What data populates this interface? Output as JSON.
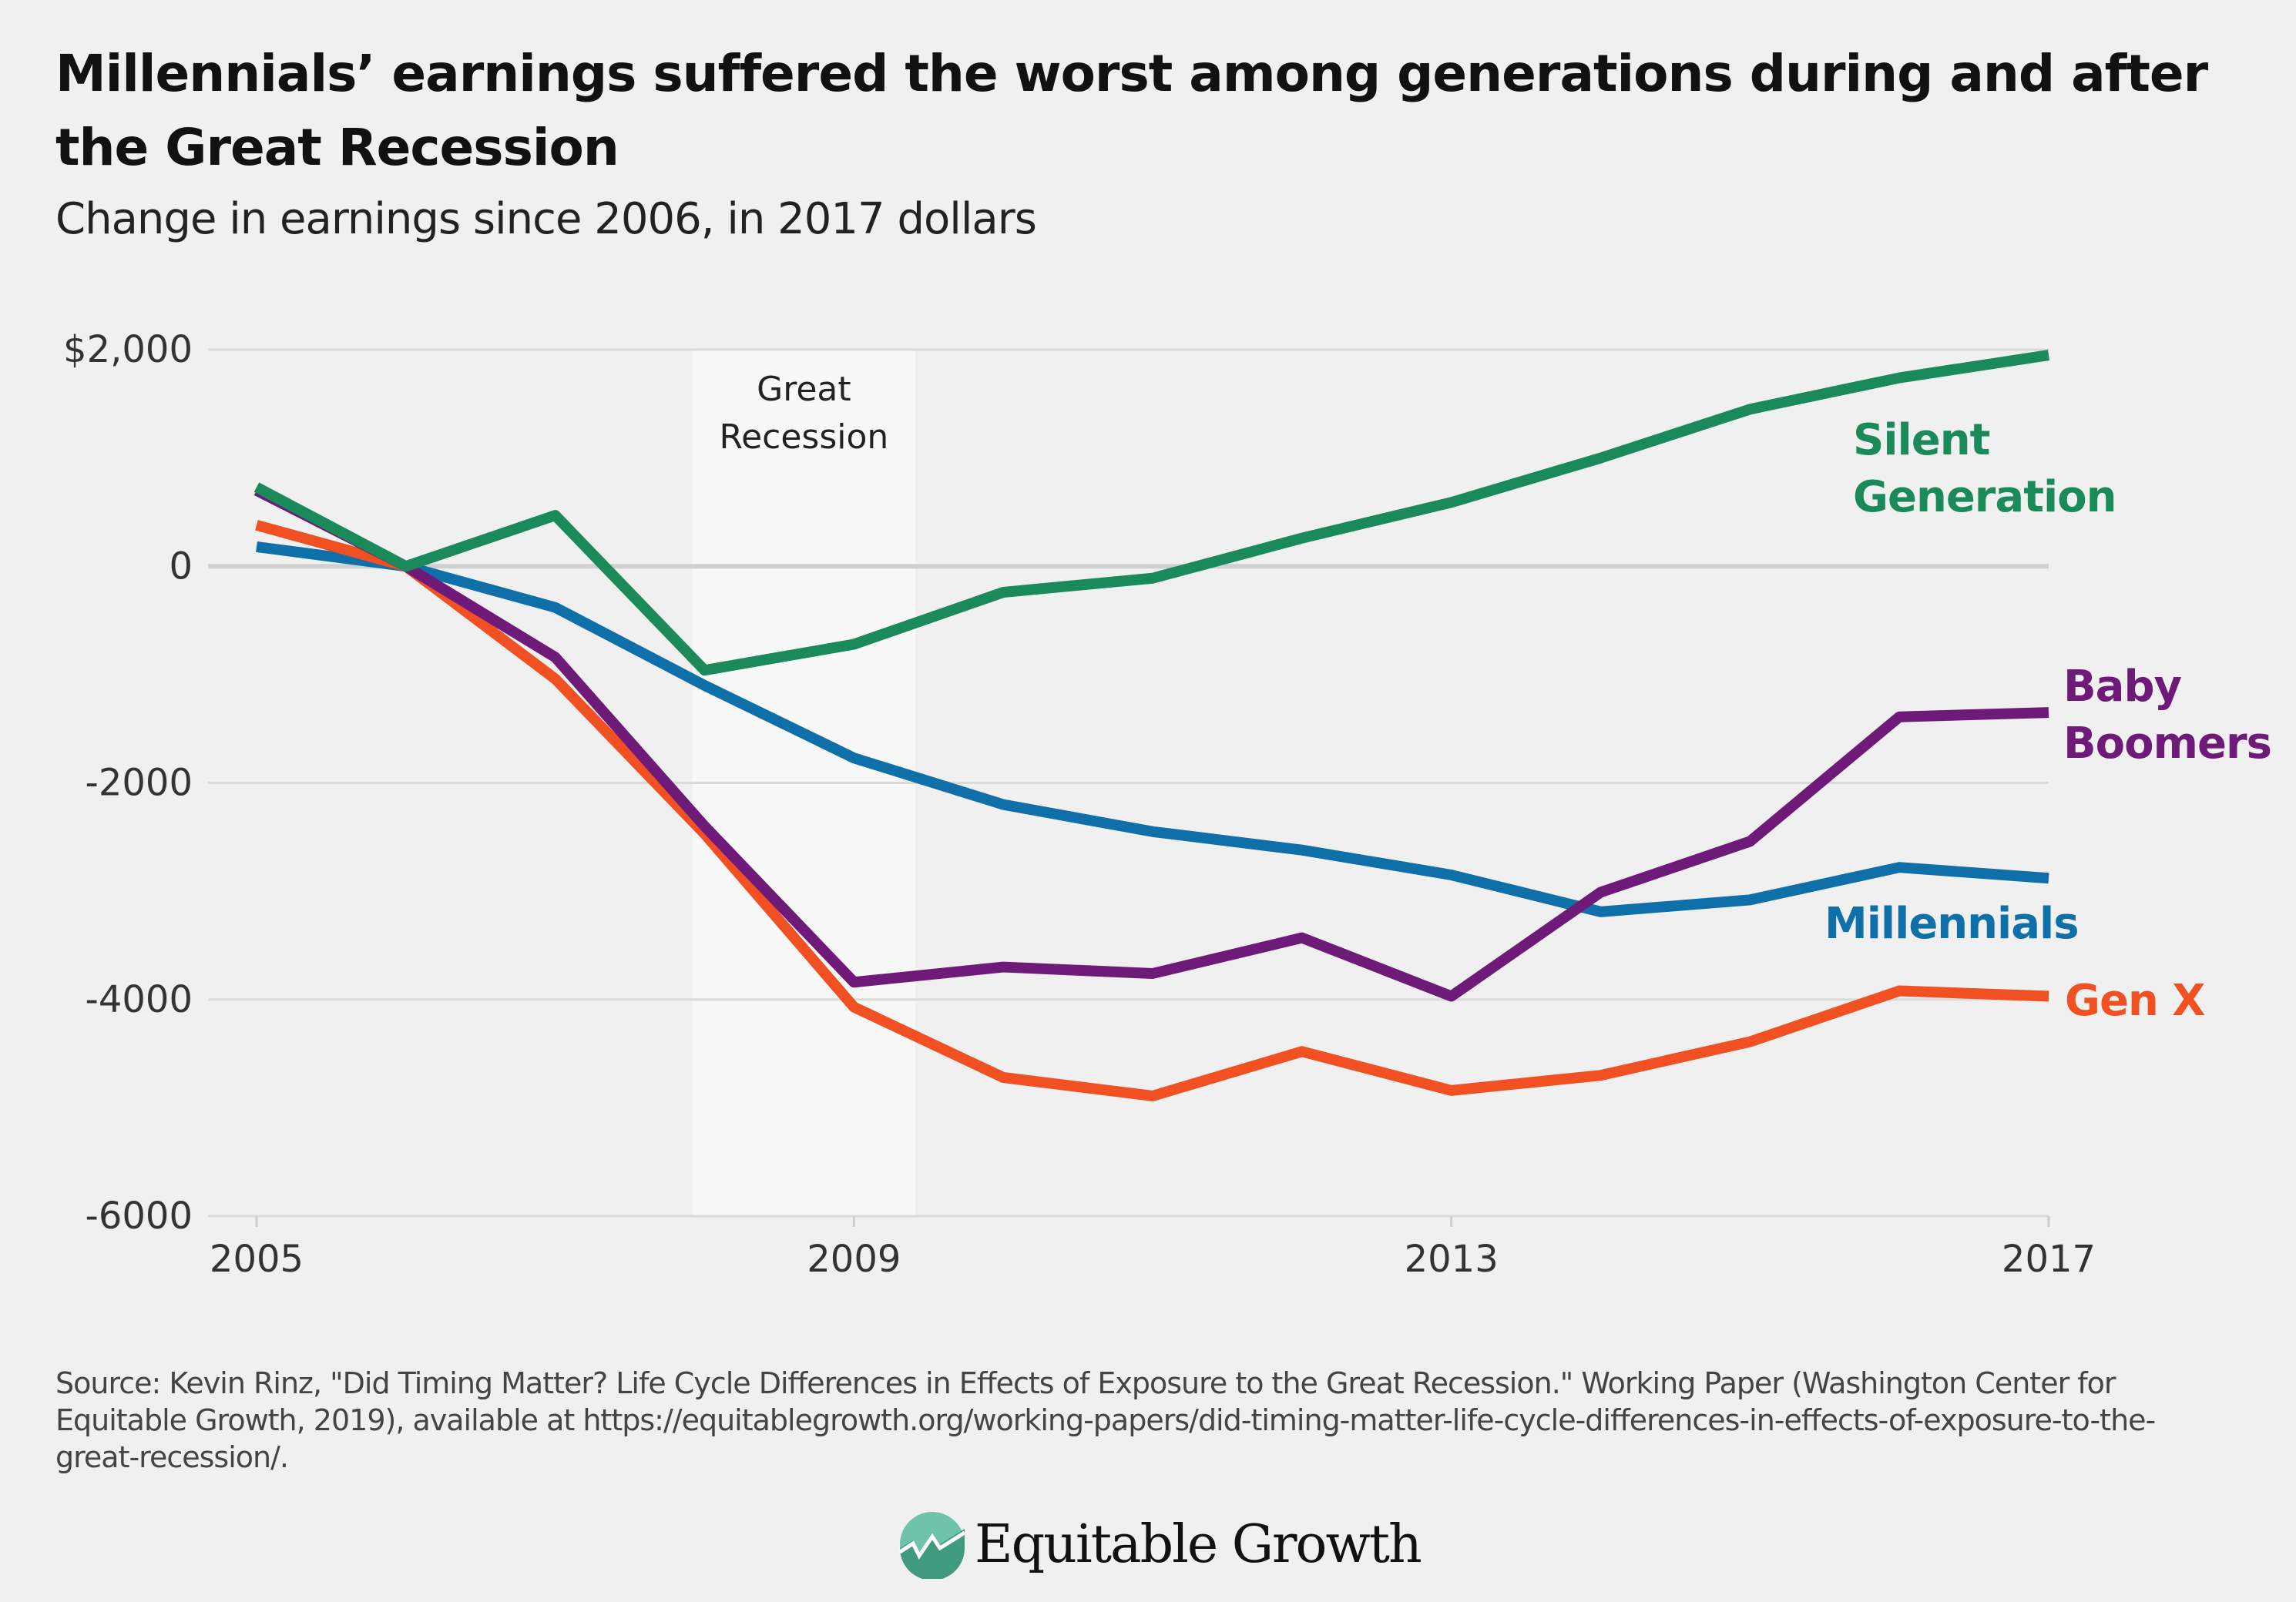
{
  "title": "Millennials’ earnings suffered the worst among generations during and after the Great Recession",
  "subtitle": "Change in earnings since 2006, in 2017 dollars",
  "source": "Source: Kevin Rinz, \"Did Timing Matter? Life Cycle Differences in Effects of Exposure to the Great Recession.\" Working Paper (Washington Center for Equitable Growth, 2019), available at https://equitablegrowth.org/working-papers/did-timing-matter-life-cycle-differences-in-effects-of-exposure-to-the-great-recession/.",
  "logo": {
    "text": "Equitable Growth",
    "icon": "growth-chart-logo-icon"
  },
  "chart_data": {
    "type": "line",
    "title": "Millennials’ earnings suffered the worst among generations during and after the Great Recession",
    "subtitle": "Change in earnings since 2006, in 2017 dollars",
    "xlabel": "",
    "ylabel": "",
    "x": [
      2005,
      2006,
      2007,
      2008,
      2009,
      2010,
      2011,
      2012,
      2013,
      2014,
      2015,
      2016,
      2017
    ],
    "xlim": [
      2005,
      2017
    ],
    "ylim": [
      -6000,
      2000
    ],
    "xticks": [
      {
        "value": 2005,
        "label": "2005"
      },
      {
        "value": 2009,
        "label": "2009"
      },
      {
        "value": 2013,
        "label": "2013"
      },
      {
        "value": 2017,
        "label": "2017"
      }
    ],
    "yticks": [
      {
        "value": 2000,
        "label": "$2,000"
      },
      {
        "value": 0,
        "label": "0"
      },
      {
        "value": -2000,
        "label": "-2000"
      },
      {
        "value": -4000,
        "label": "-4000"
      },
      {
        "value": -6000,
        "label": "-6000"
      }
    ],
    "grid": true,
    "annotation": {
      "label_line1": "Great",
      "label_line2": "Recession",
      "x_start": 2007.92,
      "x_end": 2009.41,
      "color": "#f8f8f8"
    },
    "series": [
      {
        "name": "Silent Generation",
        "label_line1": "Silent",
        "label_line2": "Generation",
        "color": "#1a8a5a",
        "values": [
          730,
          0,
          470,
          -960,
          -720,
          -240,
          -110,
          260,
          590,
          1000,
          1450,
          1740,
          1950
        ]
      },
      {
        "name": "Baby Boomers",
        "label_line1": "Baby",
        "label_line2": "Boomers",
        "color": "#6e1a78",
        "values": [
          700,
          0,
          -840,
          -2400,
          -3840,
          -3700,
          -3760,
          -3430,
          -3970,
          -3010,
          -2540,
          -1390,
          -1350
        ]
      },
      {
        "name": "Millennials",
        "label_line1": "Millennials",
        "label_line2": "",
        "color": "#0f6fa8",
        "values": [
          180,
          0,
          -380,
          -1100,
          -1770,
          -2200,
          -2450,
          -2620,
          -2850,
          -3190,
          -3080,
          -2780,
          -2880
        ]
      },
      {
        "name": "Gen X",
        "label_line1": "Gen X",
        "label_line2": "",
        "color": "#f05022",
        "values": [
          380,
          0,
          -1040,
          -2470,
          -4070,
          -4720,
          -4890,
          -4480,
          -4840,
          -4700,
          -4390,
          -3920,
          -3970
        ]
      }
    ]
  }
}
